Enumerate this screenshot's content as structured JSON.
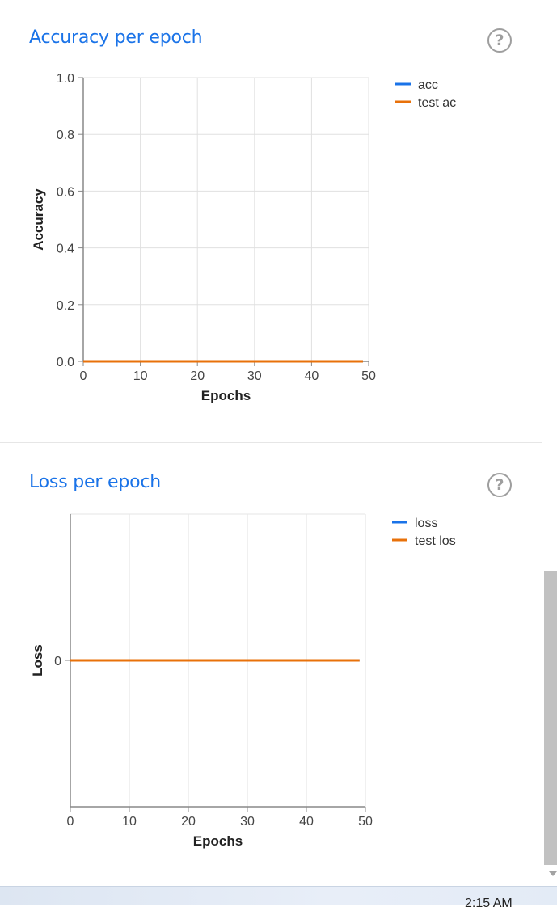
{
  "accuracy_card": {
    "title": "Accuracy per epoch",
    "help_label": "?"
  },
  "loss_card": {
    "title": "Loss per epoch",
    "help_label": "?"
  },
  "chart_data": [
    {
      "type": "line",
      "title": "Accuracy per epoch",
      "xlabel": "Epochs",
      "ylabel": "Accuracy",
      "xlim": [
        0,
        50
      ],
      "ylim": [
        0,
        1
      ],
      "x_ticks": [
        "0",
        "10",
        "20",
        "30",
        "40",
        "50"
      ],
      "y_ticks": [
        "0.0",
        "0.2",
        "0.4",
        "0.6",
        "0.8",
        "1.0"
      ],
      "x_tick_values": [
        0,
        10,
        20,
        30,
        40,
        50
      ],
      "y_tick_values": [
        0,
        0.2,
        0.4,
        0.6,
        0.8,
        1
      ],
      "grid": true,
      "legend_position": "top-right",
      "x": [
        0,
        49
      ],
      "series": [
        {
          "name": "acc",
          "color": "#1a73e8",
          "values": [
            0,
            0
          ]
        },
        {
          "name": "test ac",
          "color": "#e8710a",
          "values": [
            0,
            0
          ]
        }
      ]
    },
    {
      "type": "line",
      "title": "Loss per epoch",
      "xlabel": "Epochs",
      "ylabel": "Loss",
      "xlim": [
        0,
        50
      ],
      "ylim": [
        -1,
        1
      ],
      "x_ticks": [
        "0",
        "10",
        "20",
        "30",
        "40",
        "50"
      ],
      "y_ticks": [
        "0"
      ],
      "x_tick_values": [
        0,
        10,
        20,
        30,
        40,
        50
      ],
      "y_tick_values": [
        0
      ],
      "grid": true,
      "legend_position": "top-right",
      "x": [
        0,
        49
      ],
      "series": [
        {
          "name": "loss",
          "color": "#1a73e8",
          "values": [
            0,
            0
          ]
        },
        {
          "name": "test los",
          "color": "#e8710a",
          "values": [
            0,
            0
          ]
        }
      ]
    }
  ],
  "taskbar": {
    "clock": "2:15 AM"
  }
}
